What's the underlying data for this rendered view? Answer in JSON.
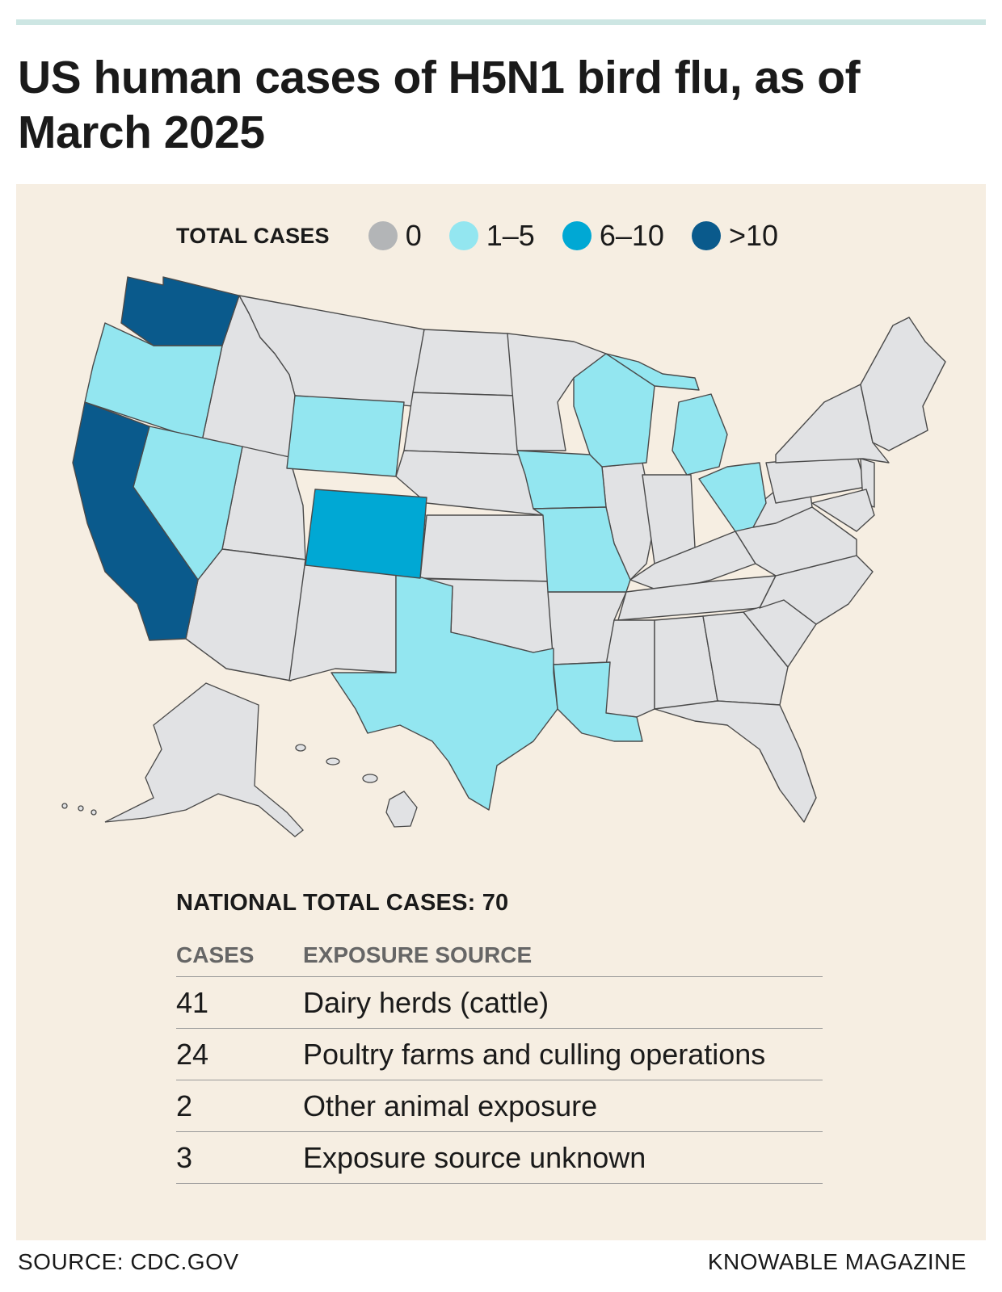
{
  "title": "US human cases of H5N1 bird flu, as of March 2025",
  "legend": {
    "title": "TOTAL CASES",
    "items": [
      {
        "label": "0",
        "color": "#b3b5b7"
      },
      {
        "label": "1–5",
        "color": "#93e6f0"
      },
      {
        "label": "6–10",
        "color": "#00a8d4"
      },
      {
        "label": ">10",
        "color": "#0a5a8c"
      }
    ]
  },
  "colors": {
    "zero_state_fill": "#e1e2e4",
    "panel_background": "#f6eee2",
    "top_rule": "#cde6e3"
  },
  "states": {
    "greater_than_10": [
      "Washington",
      "California"
    ],
    "6_to_10": [
      "Colorado"
    ],
    "1_to_5": [
      "Oregon",
      "Nevada",
      "Wyoming",
      "Iowa",
      "Missouri",
      "Wisconsin",
      "Michigan",
      "Ohio",
      "Texas",
      "Louisiana"
    ],
    "zero": [
      "all other states",
      "Alaska",
      "Hawaii"
    ]
  },
  "table": {
    "national_total": "NATIONAL TOTAL CASES: 70",
    "headers": [
      "CASES",
      "EXPOSURE SOURCE"
    ],
    "rows": [
      {
        "cases": "41",
        "source": "Dairy herds (cattle)"
      },
      {
        "cases": "24",
        "source": "Poultry farms and culling operations"
      },
      {
        "cases": "2",
        "source": "Other animal exposure"
      },
      {
        "cases": "3",
        "source": "Exposure source unknown"
      }
    ]
  },
  "footer": {
    "source": "SOURCE: CDC.GOV",
    "credit": "KNOWABLE MAGAZINE"
  }
}
